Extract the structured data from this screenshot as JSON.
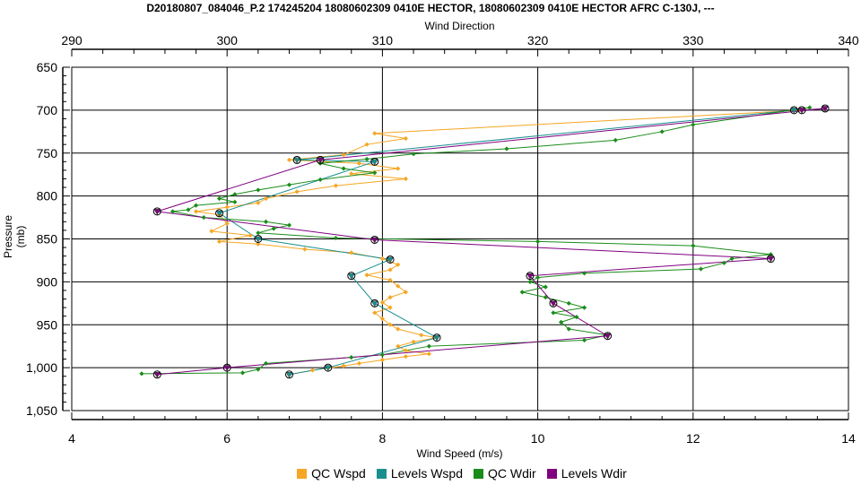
{
  "chart_data": {
    "type": "line",
    "title": "D20180807_084046_P.2 174245204 18080602309 0410E HECTOR, 18080602309 0410E HECTOR AFRC C-130J, ---",
    "top_axis": {
      "label": "Wind Direction",
      "range": [
        290,
        340
      ],
      "ticks": [
        "290",
        "300",
        "310",
        "320",
        "330",
        "340"
      ]
    },
    "bottom_axis": {
      "label": "Wind Speed (m/s)",
      "range": [
        4,
        14
      ],
      "ticks": [
        "4",
        "6",
        "8",
        "10",
        "12",
        "14"
      ]
    },
    "y_axis": {
      "label": "Pressure (mb)",
      "range": [
        650,
        1050
      ],
      "inverted": true,
      "ticks": [
        "650",
        "700",
        "750",
        "800",
        "850",
        "900",
        "950",
        "1,000",
        "1,050"
      ]
    },
    "grid": true,
    "legend_position": "bottom",
    "series": [
      {
        "name": "QC Wspd",
        "axis": "bottom",
        "color": "#f5a623",
        "marker": "diamond",
        "points": [
          [
            13.4,
            700
          ],
          [
            7.9,
            727
          ],
          [
            8.3,
            733
          ],
          [
            7.8,
            740
          ],
          [
            7.5,
            752
          ],
          [
            6.8,
            758
          ],
          [
            7.7,
            762
          ],
          [
            8.2,
            768
          ],
          [
            7.6,
            774
          ],
          [
            8.3,
            780
          ],
          [
            7.4,
            788
          ],
          [
            6.9,
            795
          ],
          [
            6.5,
            803
          ],
          [
            6.4,
            808
          ],
          [
            6.0,
            813
          ],
          [
            5.6,
            818
          ],
          [
            5.9,
            822
          ],
          [
            6.0,
            832
          ],
          [
            5.8,
            841
          ],
          [
            6.3,
            846
          ],
          [
            5.9,
            853
          ],
          [
            6.4,
            856
          ],
          [
            7.0,
            862
          ],
          [
            7.6,
            866
          ],
          [
            8.0,
            873
          ],
          [
            8.2,
            880
          ],
          [
            8.1,
            886
          ],
          [
            7.8,
            892
          ],
          [
            8.1,
            898
          ],
          [
            8.2,
            905
          ],
          [
            8.3,
            912
          ],
          [
            8.1,
            918
          ],
          [
            8.0,
            924
          ],
          [
            8.1,
            930
          ],
          [
            7.9,
            936
          ],
          [
            8.0,
            943
          ],
          [
            8.1,
            950
          ],
          [
            8.2,
            955
          ],
          [
            8.5,
            962
          ],
          [
            8.7,
            965
          ],
          [
            8.4,
            970
          ],
          [
            8.2,
            975
          ],
          [
            8.3,
            980
          ],
          [
            8.6,
            984
          ],
          [
            8.3,
            987
          ],
          [
            8.0,
            991
          ],
          [
            7.7,
            995
          ],
          [
            7.5,
            998
          ],
          [
            7.1,
            1003
          ],
          [
            6.8,
            1008
          ]
        ]
      },
      {
        "name": "Levels Wspd",
        "axis": "bottom",
        "color": "#1a8f8f",
        "marker": "triangle",
        "points": [
          [
            13.3,
            700
          ],
          [
            6.9,
            758
          ],
          [
            7.9,
            760
          ],
          [
            5.9,
            820
          ],
          [
            6.4,
            850
          ],
          [
            8.1,
            874
          ],
          [
            7.6,
            893
          ],
          [
            7.9,
            925
          ],
          [
            8.7,
            965
          ],
          [
            7.3,
            1000
          ],
          [
            6.8,
            1008
          ]
        ]
      },
      {
        "name": "QC Wdir",
        "axis": "top",
        "color": "#1a8c1a",
        "marker": "diamond",
        "points": [
          [
            337.5,
            697
          ],
          [
            330.0,
            717
          ],
          [
            328.0,
            725
          ],
          [
            325.0,
            735
          ],
          [
            318.0,
            745
          ],
          [
            312.0,
            751
          ],
          [
            309.0,
            757
          ],
          [
            306.0,
            762
          ],
          [
            307.5,
            768
          ],
          [
            309.5,
            773
          ],
          [
            306.0,
            781
          ],
          [
            304.0,
            787
          ],
          [
            302.0,
            793
          ],
          [
            300.5,
            798
          ],
          [
            299.5,
            803
          ],
          [
            300.5,
            807
          ],
          [
            298.0,
            811
          ],
          [
            297.5,
            816
          ],
          [
            296.5,
            818
          ],
          [
            298.5,
            825
          ],
          [
            302.5,
            830
          ],
          [
            304.0,
            834
          ],
          [
            303.0,
            838
          ],
          [
            302.0,
            843
          ],
          [
            307.0,
            849
          ],
          [
            320.0,
            853
          ],
          [
            330.0,
            858
          ],
          [
            335.0,
            868
          ],
          [
            332.5,
            873
          ],
          [
            332.0,
            878
          ],
          [
            330.5,
            885
          ],
          [
            323.0,
            890
          ],
          [
            320.0,
            895
          ],
          [
            319.5,
            900
          ],
          [
            320.5,
            906
          ],
          [
            319.0,
            912
          ],
          [
            320.5,
            918
          ],
          [
            322.0,
            925
          ],
          [
            323.0,
            930
          ],
          [
            321.0,
            936
          ],
          [
            322.5,
            941
          ],
          [
            321.5,
            947
          ],
          [
            322.0,
            955
          ],
          [
            324.5,
            962
          ],
          [
            323.0,
            968
          ],
          [
            313.0,
            975
          ],
          [
            310.0,
            985
          ],
          [
            308.0,
            988
          ],
          [
            302.5,
            995
          ],
          [
            302.0,
            1002
          ],
          [
            301.0,
            1006
          ],
          [
            294.5,
            1007
          ]
        ]
      },
      {
        "name": "Levels Wdir",
        "axis": "top",
        "color": "#800080",
        "marker": "triangle",
        "points": [
          [
            337.0,
            700
          ],
          [
            338.5,
            698
          ],
          [
            306.0,
            758
          ],
          [
            295.5,
            818
          ],
          [
            309.5,
            851
          ],
          [
            335.0,
            873
          ],
          [
            319.5,
            893
          ],
          [
            321.0,
            925
          ],
          [
            324.5,
            963
          ],
          [
            300.0,
            1000
          ],
          [
            295.5,
            1008
          ]
        ]
      }
    ]
  }
}
